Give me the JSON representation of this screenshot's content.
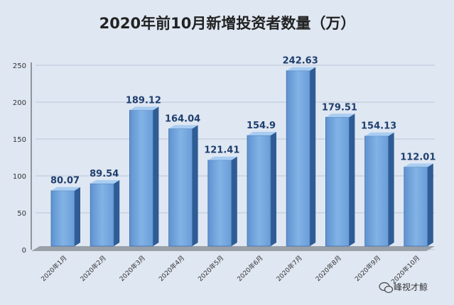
{
  "chart_data": {
    "type": "bar",
    "title": "2020年前10月新增投资者数量（万）",
    "categories": [
      "2020年1月",
      "2020年2月",
      "2020年3月",
      "2020年4月",
      "2020年5月",
      "2020年6月",
      "2020年7月",
      "2020年8月",
      "2020年9月",
      "2020年10月"
    ],
    "values": [
      80.07,
      89.54,
      189.12,
      164.04,
      121.41,
      154.9,
      242.63,
      179.51,
      154.13,
      112.01
    ],
    "ylim": [
      0,
      250
    ],
    "yticks": [
      0,
      50,
      100,
      150,
      200,
      250
    ],
    "grid": true,
    "bar_color": "#74a5dc",
    "label_color": "#1f3f6e"
  },
  "watermark": {
    "icon": "wechat-icon",
    "text": "峰视才鲸"
  }
}
